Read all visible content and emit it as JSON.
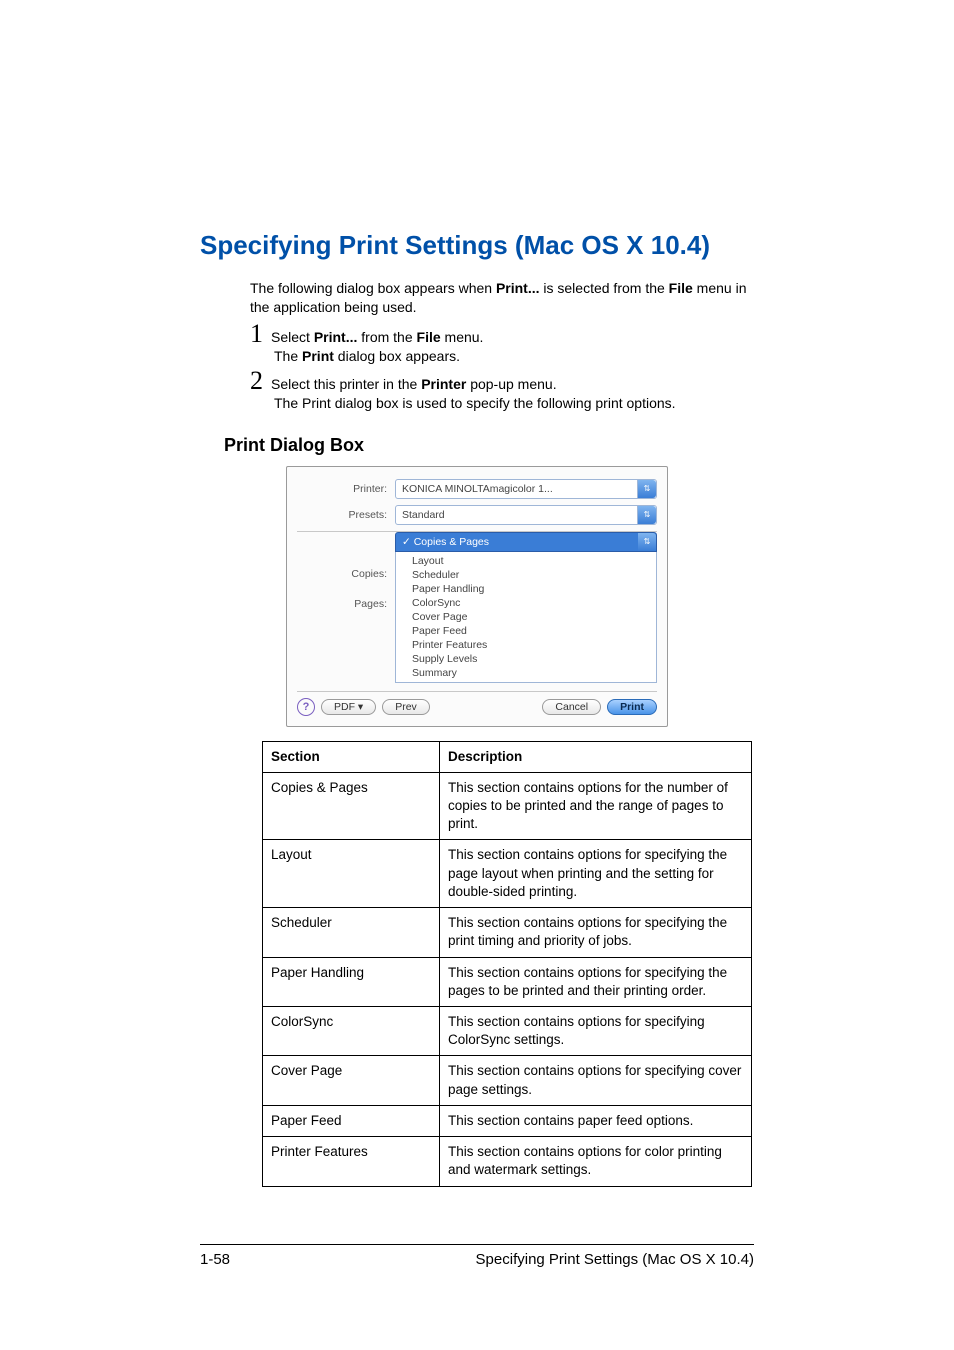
{
  "heading": "Specifying Print Settings (Mac OS X 10.4)",
  "intro": {
    "line1a": "The following dialog box appears when ",
    "line1_bold1": "Print...",
    "line1b": " is selected from the ",
    "line1_bold2": "File",
    "line2": " menu in the application being used."
  },
  "steps": {
    "s1_a": "Select ",
    "s1_bold1": "Print...",
    "s1_b": " from the ",
    "s1_bold2": "File",
    "s1_c": " menu.",
    "s1_sub_a": "The ",
    "s1_sub_bold": "Print",
    "s1_sub_b": " dialog box appears.",
    "s2_a": "Select this printer in the ",
    "s2_bold": "Printer",
    "s2_b": " pop-up menu.",
    "s2_sub": "The Print dialog box is used to specify the following print options."
  },
  "subheading": "Print Dialog Box",
  "dialog": {
    "printer_label": "Printer:",
    "printer_value": "KONICA MINOLTAmagicolor 1...",
    "presets_label": "Presets:",
    "presets_value": "Standard",
    "copies_label": "Copies:",
    "pages_label": "Pages:",
    "section_selected_prefix": "✓ ",
    "section_selected": "Copies & Pages",
    "sections": [
      "Layout",
      "Scheduler",
      "Paper Handling",
      "ColorSync",
      "Cover Page",
      "Paper Feed",
      "Printer Features",
      "Supply Levels",
      "Summary"
    ],
    "help_glyph": "?",
    "pdf_label": "PDF ▾",
    "preview_label": "Prev",
    "cancel_label": "Cancel",
    "print_label": "Print"
  },
  "table": {
    "head_section": "Section",
    "head_desc": "Description",
    "rows": [
      {
        "s": "Copies & Pages",
        "d": "This section contains options for the number of copies to be printed and the range of pages to print."
      },
      {
        "s": "Layout",
        "d": "This section contains options for specifying the page layout when printing and the setting for double-sided printing."
      },
      {
        "s": "Scheduler",
        "d": "This section contains options for specifying the print timing and priority of jobs."
      },
      {
        "s": "Paper Handling",
        "d": "This section contains options for specifying the pages to be printed and their printing order."
      },
      {
        "s": "ColorSync",
        "d": "This section contains options for specifying ColorSync settings."
      },
      {
        "s": "Cover Page",
        "d": "This section contains options for specifying cover page settings."
      },
      {
        "s": "Paper Feed",
        "d": "This section contains paper feed options."
      },
      {
        "s": "Printer Features",
        "d": "This section contains options for color printing and watermark settings."
      }
    ]
  },
  "footer": {
    "page": "1-58",
    "title": "Specifying Print Settings (Mac OS X 10.4)"
  },
  "colors": {
    "heading": "#0050a8",
    "combo_accent": "#3a7dd6"
  }
}
